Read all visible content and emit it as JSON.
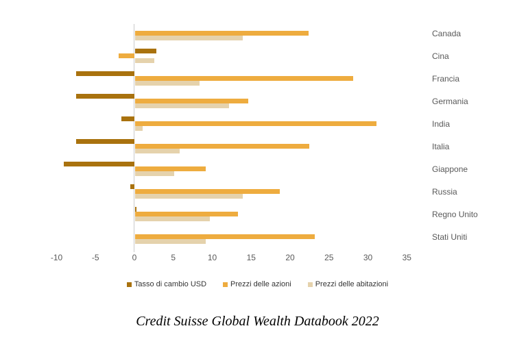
{
  "chart_data": {
    "type": "bar",
    "orientation": "horizontal",
    "title": "",
    "categories": [
      "Canada",
      "Cina",
      "Francia",
      "Germania",
      "India",
      "Italia",
      "Giappone",
      "Russia",
      "Regno Unito",
      "Stati Uniti"
    ],
    "series": [
      {
        "name": "Tasso di cambio USD",
        "color": "#a9720e",
        "values": [
          0,
          2.7,
          -7.5,
          -7.5,
          -1.7,
          -7.5,
          -9.1,
          -0.5,
          0.2,
          0
        ]
      },
      {
        "name": "Prezzi delle azioni",
        "color": "#eeac3f",
        "values": [
          22.3,
          -2,
          28,
          14.5,
          31,
          22.4,
          9.1,
          18.6,
          13.2,
          23.1
        ]
      },
      {
        "name": "Prezzi delle abitazioni",
        "color": "#e5d2ac",
        "values": [
          13.8,
          2.5,
          8.3,
          12.1,
          1,
          5.7,
          5,
          13.8,
          9.6,
          9.1
        ]
      }
    ],
    "xlim": [
      -10,
      35
    ],
    "x_ticks": [
      -10,
      -5,
      0,
      5,
      10,
      15,
      20,
      25,
      30,
      35
    ],
    "grid": false,
    "legend_position": "bottom"
  },
  "caption": "Credit Suisse Global Wealth Databook 2022",
  "colors": {
    "axis_line": "#c9c9c9",
    "tick_text": "#595959",
    "category_text": "#595959",
    "legend_text": "#333333",
    "background": "#ffffff"
  }
}
